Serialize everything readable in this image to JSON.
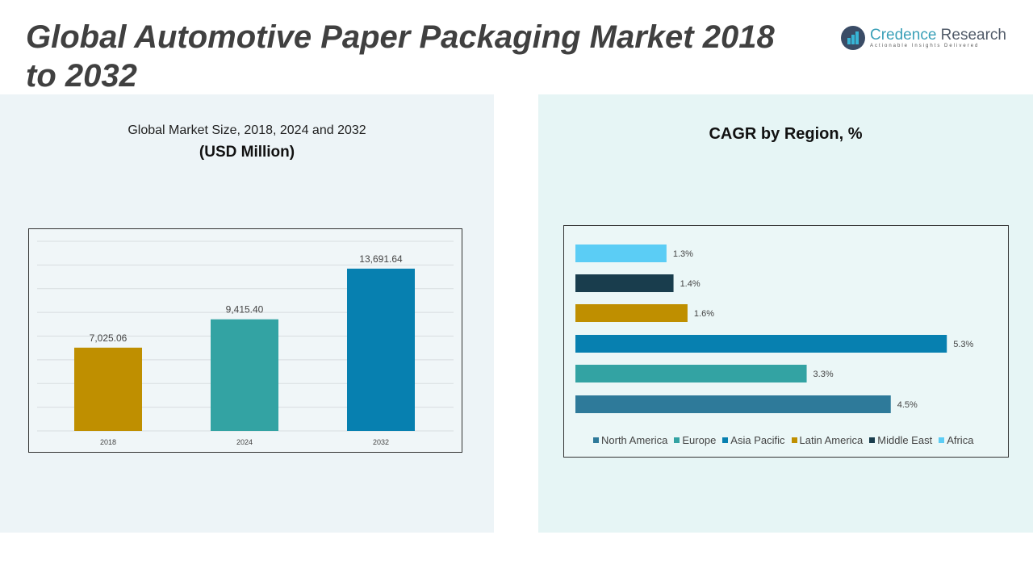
{
  "header": {
    "title": "Global Automotive Paper Packaging Market 2018 to 2032",
    "logo": {
      "name_a": "Credence",
      "name_b": " Research",
      "tagline": "Actionable Insights Delivered"
    }
  },
  "chart_data": [
    {
      "type": "bar",
      "title": "Global Market Size, 2018, 2024 and 2032",
      "subtitle": "(USD Million)",
      "categories": [
        "2018",
        "2024",
        "2032"
      ],
      "values": [
        7025.06,
        9415.4,
        13691.64
      ],
      "labels": [
        "7,025.06",
        "9,415.40",
        "13,691.64"
      ],
      "colors": [
        "#bf8f00",
        "#33a3a3",
        "#0780b0"
      ],
      "ylim": [
        0,
        16000
      ],
      "grid": true
    },
    {
      "type": "bar",
      "orientation": "horizontal",
      "title": "CAGR by Region, %",
      "categories": [
        "Africa",
        "Middle East",
        "Latin America",
        "Asia Pacific",
        "Europe",
        "North America"
      ],
      "values": [
        1.3,
        1.4,
        1.6,
        5.3,
        3.3,
        4.5
      ],
      "labels": [
        "1.3%",
        "1.4%",
        "1.6%",
        "5.3%",
        "3.3%",
        "4.5%"
      ],
      "colors": [
        "#5bcdf5",
        "#193d4d",
        "#bf8f00",
        "#0780b0",
        "#33a3a3",
        "#2e7a9a"
      ],
      "xlim": [
        0,
        6
      ],
      "legend_position": "bottom",
      "legend": [
        {
          "name": "North America",
          "color": "#2e7a9a"
        },
        {
          "name": "Europe",
          "color": "#33a3a3"
        },
        {
          "name": "Asia Pacific",
          "color": "#0780b0"
        },
        {
          "name": "Latin America",
          "color": "#bf8f00"
        },
        {
          "name": "Middle East",
          "color": "#193d4d"
        },
        {
          "name": "Africa",
          "color": "#5bcdf5"
        }
      ]
    }
  ]
}
